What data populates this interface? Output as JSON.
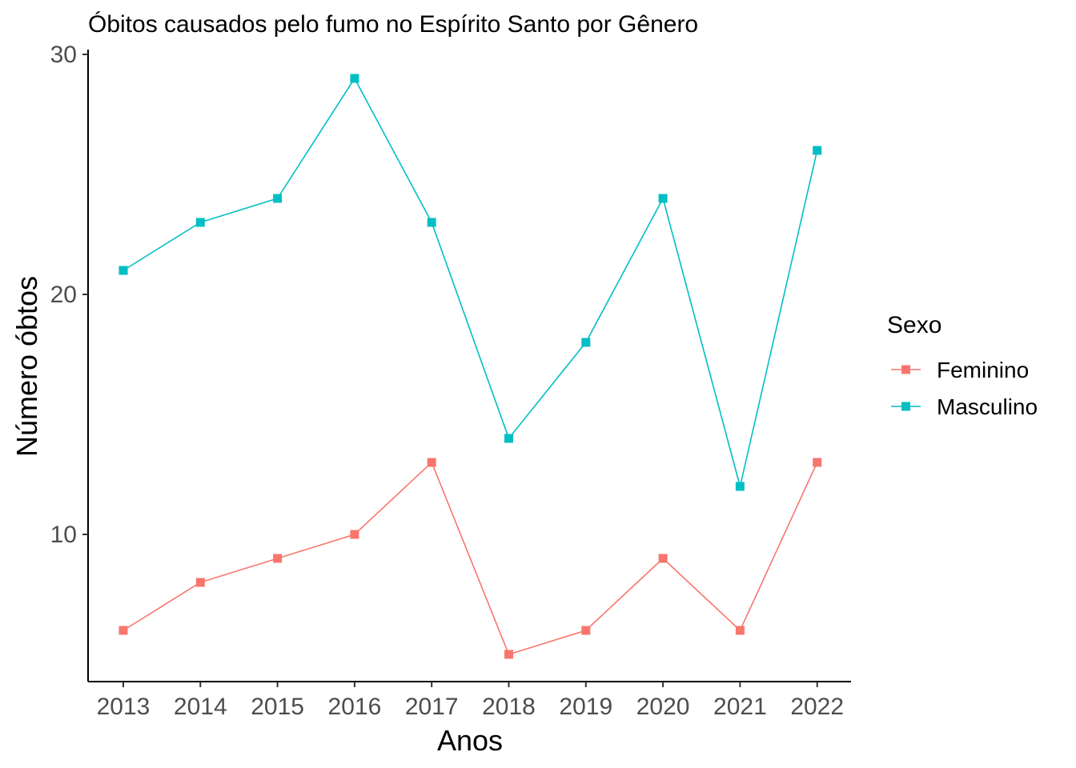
{
  "chart_data": {
    "type": "line",
    "title": "Óbitos causados pelo fumo no Espírito Santo por Gênero",
    "xlabel": "Anos",
    "ylabel": "Número óbtos",
    "x": [
      "2013",
      "2014",
      "2015",
      "2016",
      "2017",
      "2018",
      "2019",
      "2020",
      "2021",
      "2022"
    ],
    "yticks": [
      "10",
      "20",
      "30"
    ],
    "ylim": [
      4,
      30
    ],
    "grid": false,
    "legend": {
      "title": "Sexo",
      "position": "right"
    },
    "series": [
      {
        "name": "Feminino",
        "color": "#F8766D",
        "values": [
          6,
          8,
          9,
          10,
          13,
          5,
          6,
          9,
          6,
          13
        ]
      },
      {
        "name": "Masculino",
        "color": "#00BFC4",
        "values": [
          21,
          23,
          24,
          29,
          23,
          14,
          18,
          24,
          12,
          26
        ]
      }
    ]
  }
}
